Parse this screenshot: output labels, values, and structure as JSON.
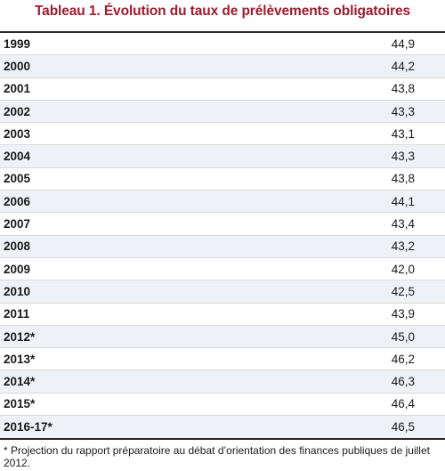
{
  "title": "Tableau 1. Évolution du taux de prélèvements obligatoires",
  "rows": [
    {
      "year": "1999",
      "value": "44,9"
    },
    {
      "year": "2000",
      "value": "44,2"
    },
    {
      "year": "2001",
      "value": "43,8"
    },
    {
      "year": "2002",
      "value": "43,3"
    },
    {
      "year": "2003",
      "value": "43,1"
    },
    {
      "year": "2004",
      "value": "43,3"
    },
    {
      "year": "2005",
      "value": "43,8"
    },
    {
      "year": "2006",
      "value": "44,1"
    },
    {
      "year": "2007",
      "value": "43,4"
    },
    {
      "year": "2008",
      "value": "43,2"
    },
    {
      "year": "2009",
      "value": "42,0"
    },
    {
      "year": "2010",
      "value": "42,5"
    },
    {
      "year": "2011",
      "value": "43,9"
    },
    {
      "year": "2012*",
      "value": "45,0"
    },
    {
      "year": "2013*",
      "value": "46,2"
    },
    {
      "year": "2014*",
      "value": "46,3"
    },
    {
      "year": "2015*",
      "value": "46,4"
    },
    {
      "year": "2016-17*",
      "value": "46,5"
    }
  ],
  "footnote": "* Projection du  rapport préparatoire au débat d’orientation des finances publiques de juillet 2012."
}
